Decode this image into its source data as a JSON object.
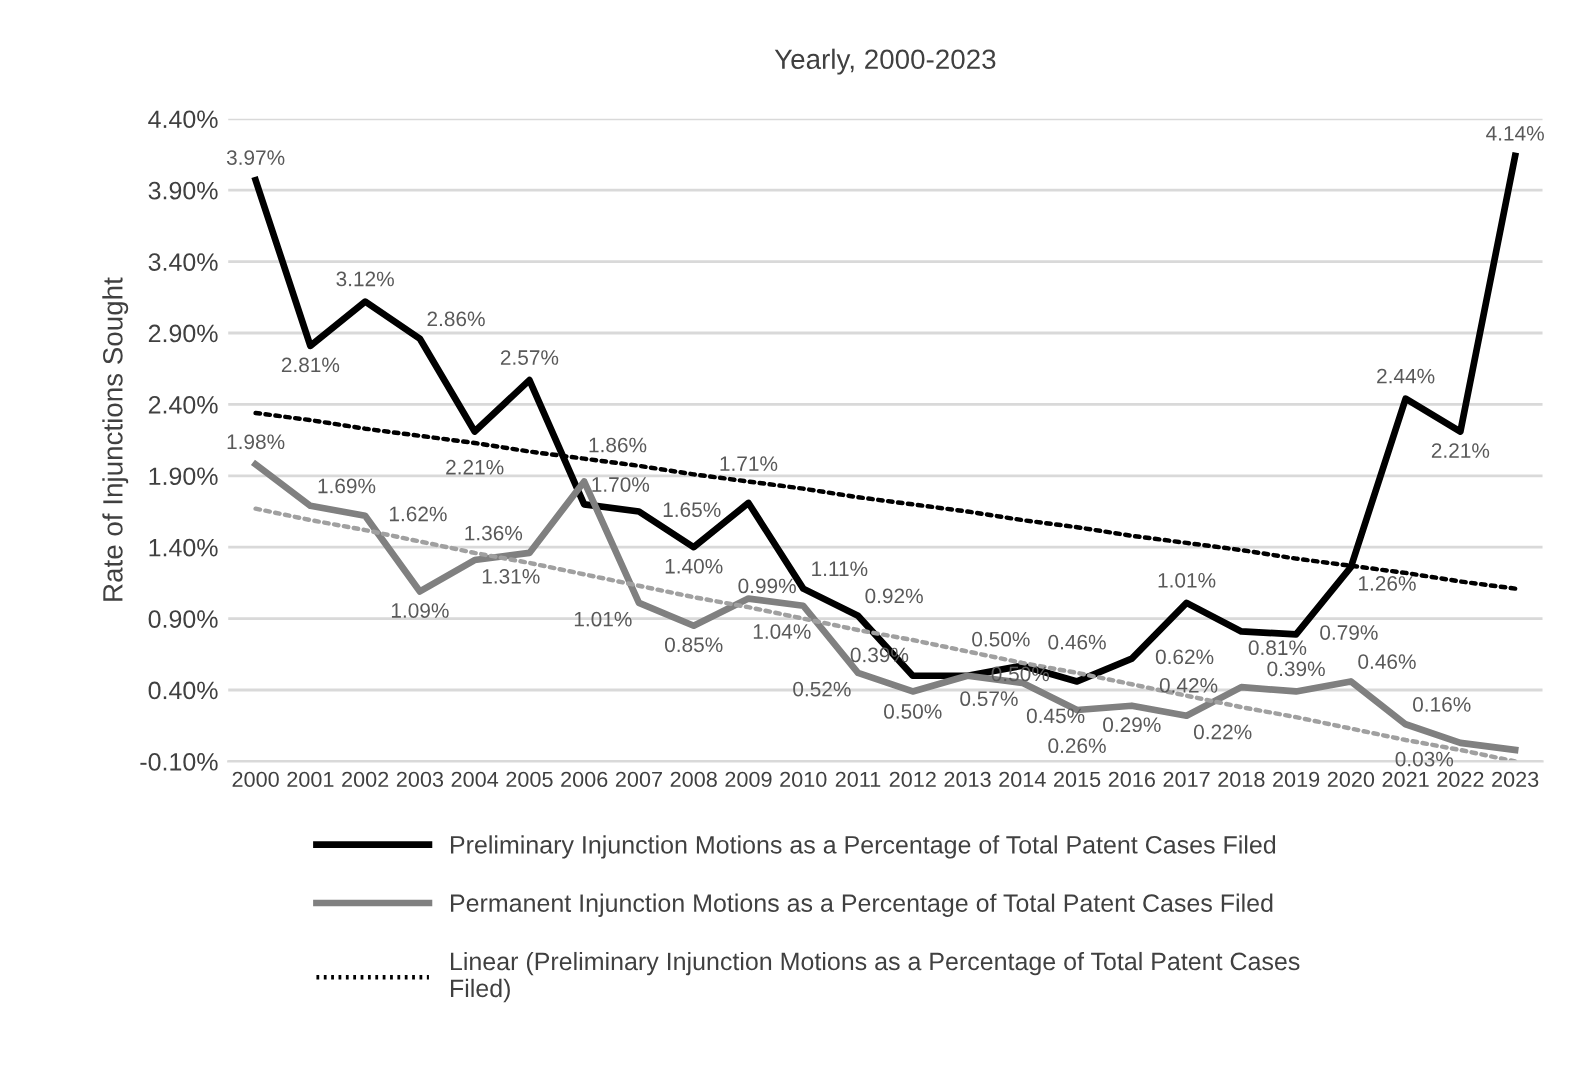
{
  "chart_data": {
    "type": "line",
    "title": "Yearly, 2000-2023",
    "ylabel": "Rate of Injunctions Sought",
    "categories": [
      "2000",
      "2001",
      "2002",
      "2003",
      "2004",
      "2005",
      "2006",
      "2007",
      "2008",
      "2009",
      "2010",
      "2011",
      "2012",
      "2013",
      "2014",
      "2015",
      "2016",
      "2017",
      "2018",
      "2019",
      "2020",
      "2021",
      "2022",
      "2023"
    ],
    "series": [
      {
        "name": "Preliminary Injunction Motions as a Percentage of Total Patent Cases Filed",
        "color": "#000000",
        "line_style": "solid",
        "values": [
          3.97,
          2.81,
          3.12,
          2.86,
          2.21,
          2.57,
          1.7,
          1.65,
          1.4,
          1.71,
          1.11,
          0.92,
          0.5,
          0.5,
          0.57,
          0.46,
          0.62,
          1.01,
          0.81,
          0.79,
          1.26,
          2.44,
          2.21,
          4.14
        ],
        "value_labels": [
          "3.97%",
          "2.81%",
          "3.12%",
          "2.86%",
          "2.21%",
          "2.57%",
          "1.70%",
          "1.65%",
          "1.40%",
          "1.71%",
          "1.11%",
          "0.92%",
          "0.50%",
          "0.50%",
          "0.57%",
          "0.46%",
          "0.62%",
          "1.01%",
          "0.81%",
          "0.79%",
          "1.26%",
          "2.44%",
          "2.21%",
          "4.14%"
        ]
      },
      {
        "name": "Permanent Injunction Motions as a Percentage of Total Patent Cases Filed",
        "color": "#808080",
        "line_style": "solid",
        "values": [
          1.98,
          1.69,
          1.62,
          1.09,
          1.31,
          1.36,
          1.86,
          1.01,
          0.85,
          1.04,
          0.99,
          0.52,
          0.39,
          0.5,
          0.45,
          0.26,
          0.29,
          0.22,
          0.42,
          0.39,
          0.46,
          0.16,
          0.03,
          -0.02
        ],
        "value_labels": [
          "1.98%",
          "1.69%",
          "1.62%",
          "1.09%",
          "1.31%",
          "1.36%",
          "1.86%",
          "1.01%",
          "0.85%",
          "1.04%",
          "0.99%",
          "0.52%",
          "0.39%",
          "0.50%",
          "0.45%",
          "0.26%",
          "0.29%",
          "0.22%",
          "0.42%",
          "0.39%",
          "0.46%",
          "0.16%",
          "0.03%",
          null
        ]
      },
      {
        "name": "Linear (Preliminary Injunction Motions as a Percentage of Total Patent Cases Filed)",
        "color": "#000000",
        "line_style": "dotted",
        "values": [
          2.34,
          2.29,
          2.23,
          2.18,
          2.13,
          2.07,
          2.02,
          1.97,
          1.91,
          1.86,
          1.81,
          1.75,
          1.7,
          1.65,
          1.59,
          1.54,
          1.48,
          1.43,
          1.38,
          1.32,
          1.27,
          1.22,
          1.16,
          1.11
        ]
      },
      {
        "color": "#a0a0a0",
        "line_style": "dotted",
        "values": [
          1.67,
          1.59,
          1.52,
          1.44,
          1.36,
          1.29,
          1.21,
          1.13,
          1.05,
          0.98,
          0.9,
          0.82,
          0.75,
          0.67,
          0.59,
          0.52,
          0.44,
          0.36,
          0.28,
          0.21,
          0.13,
          0.05,
          -0.02,
          -0.1
        ]
      }
    ],
    "ylim": [
      -0.1,
      4.4
    ],
    "yticks": [
      {
        "value": -0.1,
        "label": "-0.10%"
      },
      {
        "value": 0.4,
        "label": "0.40%"
      },
      {
        "value": 0.9,
        "label": "0.90%"
      },
      {
        "value": 1.4,
        "label": "1.40%"
      },
      {
        "value": 1.9,
        "label": "1.90%"
      },
      {
        "value": 2.4,
        "label": "2.40%"
      },
      {
        "value": 2.9,
        "label": "2.90%"
      },
      {
        "value": 3.4,
        "label": "3.40%"
      },
      {
        "value": 3.9,
        "label": "3.90%"
      },
      {
        "value": 4.4,
        "label": "4.40%"
      }
    ],
    "grid": "y",
    "legend": "bottom",
    "marker": "none"
  }
}
